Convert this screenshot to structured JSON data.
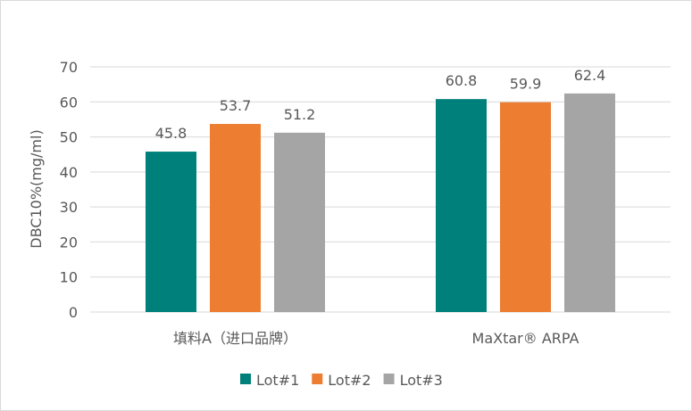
{
  "chart_data": {
    "type": "bar",
    "title": "",
    "xlabel": "",
    "ylabel": "DBC10%(mg/ml)",
    "ylim": [
      0,
      70
    ],
    "yticks": [
      0,
      10,
      20,
      30,
      40,
      50,
      60,
      70
    ],
    "grid": true,
    "legend_position": "bottom",
    "categories": [
      "填料A（进口品牌）",
      "MaXtar® ARPA"
    ],
    "series": [
      {
        "name": "Lot#1",
        "values": [
          45.8,
          60.8
        ],
        "color": "#00807a"
      },
      {
        "name": "Lot#2",
        "values": [
          53.7,
          59.9
        ],
        "color": "#ed7d31"
      },
      {
        "name": "Lot#3",
        "values": [
          51.2,
          62.4
        ],
        "color": "#a5a5a5"
      }
    ]
  }
}
